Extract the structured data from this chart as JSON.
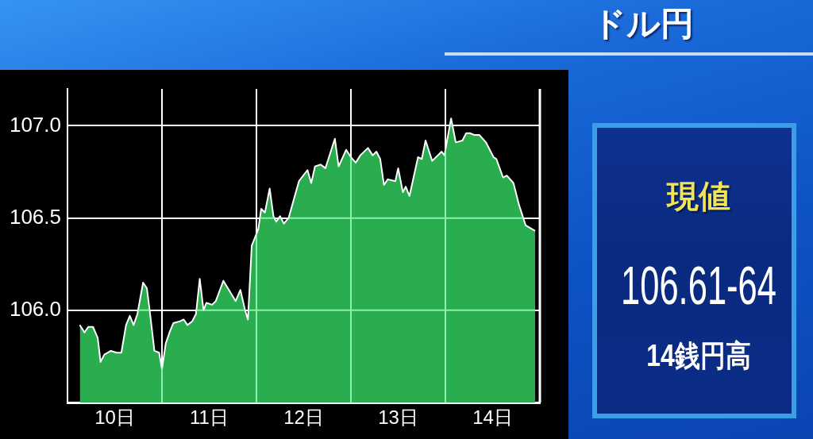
{
  "chart_data": [
    {
      "type": "area",
      "x": [
        10.13,
        10.18,
        10.22,
        10.27,
        10.32,
        10.35,
        10.39,
        10.46,
        10.52,
        10.57,
        10.62,
        10.66,
        10.7,
        10.74,
        10.8,
        10.84,
        10.87,
        10.92,
        10.97,
        11.0,
        11.04,
        11.08,
        11.12,
        11.19,
        11.23,
        11.27,
        11.32,
        11.36,
        11.4,
        11.44,
        11.47,
        11.53,
        11.57,
        11.65,
        11.72,
        11.78,
        11.83,
        11.88,
        11.91,
        11.95,
        12.02,
        12.05,
        12.09,
        12.14,
        12.18,
        12.21,
        12.25,
        12.29,
        12.34,
        12.45,
        12.54,
        12.58,
        12.62,
        12.68,
        12.73,
        12.83,
        12.87,
        12.95,
        13.0,
        13.05,
        13.1,
        13.18,
        13.23,
        13.27,
        13.31,
        13.35,
        13.39,
        13.47,
        13.5,
        13.55,
        13.58,
        13.62,
        13.71,
        13.75,
        13.79,
        13.86,
        13.96,
        13.99,
        14.06,
        14.11,
        14.18,
        14.22,
        14.26,
        14.31,
        14.36,
        14.43,
        14.51,
        14.54,
        14.61,
        14.65,
        14.72,
        14.78,
        14.85,
        14.95
      ],
      "series": [
        {
          "color": "#2aad4e",
          "values": [
            105.92,
            105.88,
            105.91,
            105.91,
            105.85,
            105.72,
            105.76,
            105.78,
            105.77,
            105.77,
            105.92,
            105.97,
            105.92,
            105.98,
            106.15,
            106.12,
            106.0,
            105.78,
            105.77,
            105.68,
            105.82,
            105.88,
            105.93,
            105.94,
            105.95,
            105.92,
            105.94,
            105.98,
            106.17,
            106.0,
            106.04,
            106.03,
            106.05,
            106.16,
            106.1,
            106.05,
            106.11,
            106.0,
            105.95,
            106.35,
            106.44,
            106.55,
            106.53,
            106.66,
            106.51,
            106.48,
            106.51,
            106.47,
            106.5,
            106.7,
            106.76,
            106.69,
            106.78,
            106.79,
            106.77,
            106.93,
            106.78,
            106.87,
            106.83,
            106.8,
            106.84,
            106.88,
            106.84,
            106.86,
            106.82,
            106.68,
            106.71,
            106.7,
            106.77,
            106.64,
            106.67,
            106.62,
            106.83,
            106.82,
            106.92,
            106.81,
            106.86,
            106.84,
            107.04,
            106.91,
            106.92,
            106.96,
            106.96,
            106.95,
            106.95,
            106.91,
            106.83,
            106.82,
            106.72,
            106.73,
            106.69,
            106.57,
            106.46,
            106.43
          ]
        }
      ],
      "xlim": [
        10,
        15
      ],
      "xticks": [
        {
          "value": 10.5,
          "label": "10日"
        },
        {
          "value": 11.5,
          "label": "11日"
        },
        {
          "value": 12.5,
          "label": "12日"
        },
        {
          "value": 13.5,
          "label": "13日"
        },
        {
          "value": 14.5,
          "label": "14日"
        }
      ],
      "ylim": [
        105.5,
        107.2
      ],
      "yticks": [
        {
          "value": 106,
          "label": "106.0"
        },
        {
          "value": 106.5,
          "label": "106.5"
        },
        {
          "value": 107,
          "label": "107.0"
        }
      ],
      "grid": "y",
      "ref_lines": [
        {
          "axis": "x",
          "value": 11,
          "color": "#ffffff"
        },
        {
          "axis": "x",
          "value": 12,
          "color": "#ffffff"
        },
        {
          "axis": "x",
          "value": 13,
          "color": "#ffffff"
        },
        {
          "axis": "x",
          "value": 14,
          "color": "#ffffff"
        }
      ]
    },
    {
      "type": "other",
      "title": "ドル円",
      "subtitle": "現値",
      "annotations": [
        "106.61-64",
        "14銭円高"
      ]
    }
  ]
}
